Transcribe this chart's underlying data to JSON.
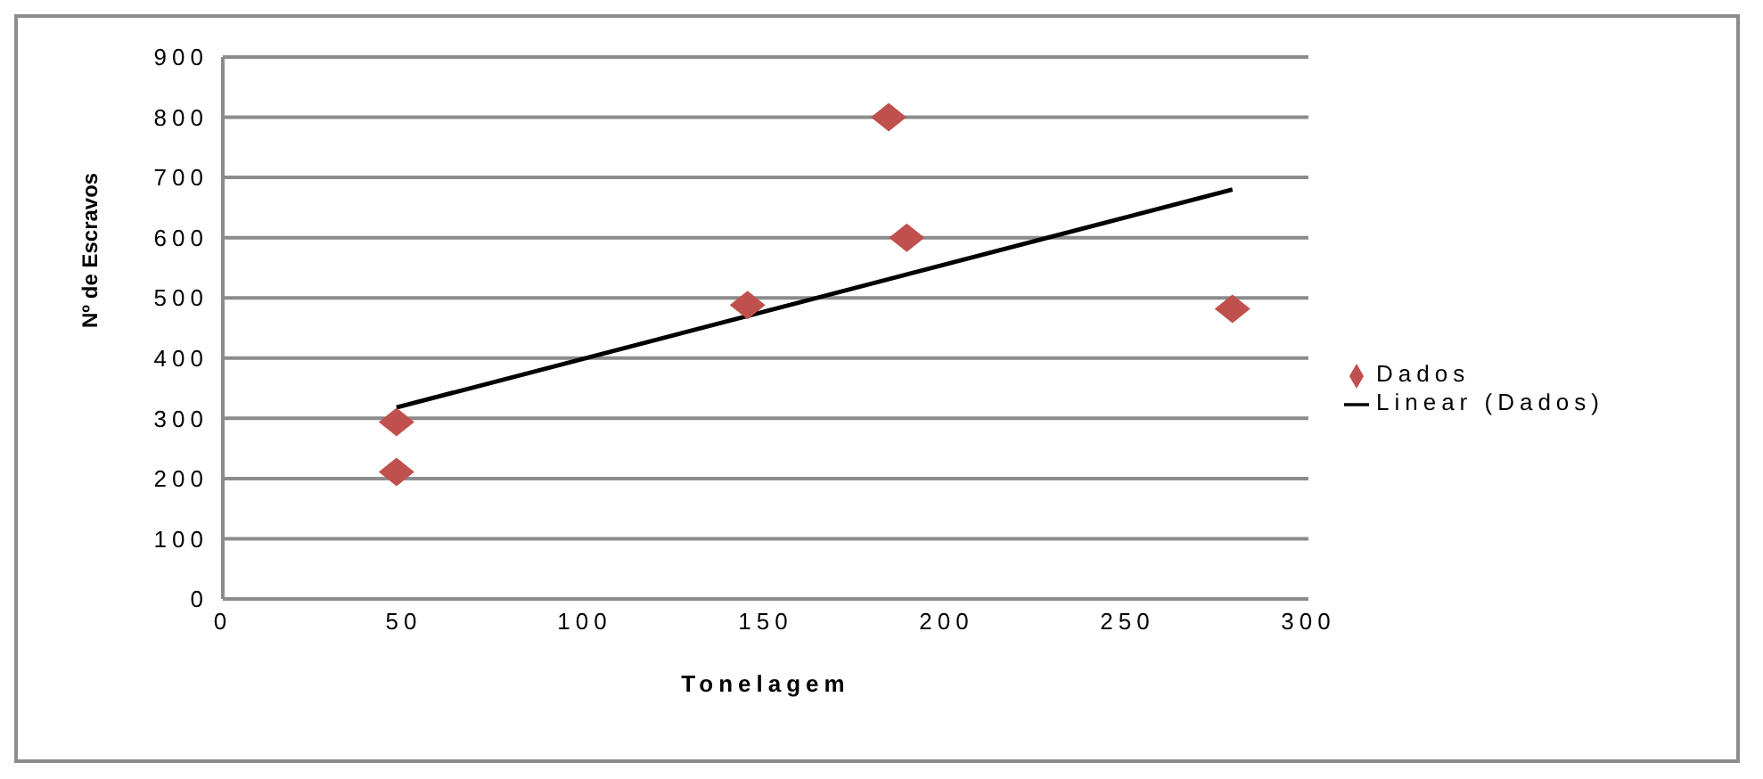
{
  "chart_data": {
    "type": "scatter",
    "xlabel": "Tonelagem",
    "ylabel": "Nº de Escravos",
    "xlim": [
      0,
      300
    ],
    "xticks": [
      0,
      50,
      100,
      150,
      200,
      250,
      300
    ],
    "ylim": [
      0,
      900
    ],
    "yticks": [
      0,
      100,
      200,
      300,
      400,
      500,
      600,
      700,
      800,
      900
    ],
    "grid": "y",
    "legend": "right",
    "marker": "diamond",
    "series": [
      {
        "name": "Dados",
        "color": "#c0504d",
        "x": [
          48,
          48,
          145,
          184,
          189,
          279
        ],
        "values": [
          211,
          294,
          488,
          800,
          600,
          482
        ]
      },
      {
        "name": "Linear (Dados)",
        "type": "line",
        "color": "#000000",
        "x": [
          48,
          279
        ],
        "values": [
          318,
          680
        ],
        "marker": "none"
      }
    ]
  }
}
